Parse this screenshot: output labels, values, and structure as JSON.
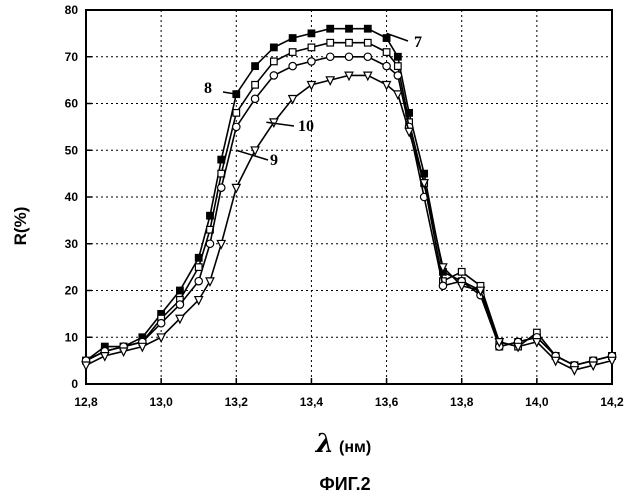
{
  "chart_data": {
    "type": "line",
    "ylabel": "R(%)",
    "xlabel_symbol": "λ",
    "xlabel_unit": "(нм)",
    "caption": "ФИГ.2",
    "xlim": [
      12.8,
      14.2
    ],
    "ylim": [
      0,
      80
    ],
    "x_ticks": [
      {
        "v": 12.8,
        "label": "12,8"
      },
      {
        "v": 13.0,
        "label": "13,0"
      },
      {
        "v": 13.2,
        "label": "13,2"
      },
      {
        "v": 13.4,
        "label": "13,4"
      },
      {
        "v": 13.6,
        "label": "13,6"
      },
      {
        "v": 13.8,
        "label": "13,8"
      },
      {
        "v": 14.0,
        "label": "14,0"
      },
      {
        "v": 14.2,
        "label": "14,2"
      }
    ],
    "y_ticks": [
      {
        "v": 0,
        "label": "0"
      },
      {
        "v": 10,
        "label": "10"
      },
      {
        "v": 20,
        "label": "20"
      },
      {
        "v": 30,
        "label": "30"
      },
      {
        "v": 40,
        "label": "40"
      },
      {
        "v": 50,
        "label": "50"
      },
      {
        "v": 60,
        "label": "60"
      },
      {
        "v": 70,
        "label": "70"
      },
      {
        "v": 80,
        "label": "80"
      }
    ],
    "grid": true,
    "series": [
      {
        "name": "7",
        "marker": "square-filled",
        "x": [
          12.8,
          12.85,
          12.9,
          12.95,
          13.0,
          13.05,
          13.1,
          13.13,
          13.16,
          13.2,
          13.25,
          13.3,
          13.35,
          13.4,
          13.45,
          13.5,
          13.55,
          13.6,
          13.63,
          13.66,
          13.7,
          13.75,
          13.8,
          13.85,
          13.9,
          13.95,
          14.0,
          14.05,
          14.1,
          14.15,
          14.2
        ],
        "y": [
          5,
          8,
          8,
          10,
          15,
          20,
          27,
          36,
          48,
          62,
          68,
          72,
          74,
          75,
          76,
          76,
          76,
          74,
          70,
          58,
          45,
          24,
          22,
          20,
          8,
          9,
          10,
          6,
          4,
          5,
          6
        ]
      },
      {
        "name": "8",
        "marker": "square-open",
        "x": [
          12.8,
          12.85,
          12.9,
          12.95,
          13.0,
          13.05,
          13.1,
          13.13,
          13.16,
          13.2,
          13.25,
          13.3,
          13.35,
          13.4,
          13.45,
          13.5,
          13.55,
          13.6,
          13.63,
          13.66,
          13.7,
          13.75,
          13.8,
          13.85,
          13.9,
          13.95,
          14.0,
          14.05,
          14.1,
          14.15,
          14.2
        ],
        "y": [
          5,
          7,
          8,
          9,
          14,
          18,
          25,
          33,
          45,
          58,
          64,
          69,
          71,
          72,
          73,
          73,
          73,
          71,
          68,
          56,
          43,
          22,
          24,
          21,
          9,
          8,
          11,
          6,
          4,
          5,
          6
        ]
      },
      {
        "name": "10",
        "marker": "circle-open",
        "x": [
          12.8,
          12.85,
          12.9,
          12.95,
          13.0,
          13.05,
          13.1,
          13.13,
          13.16,
          13.2,
          13.25,
          13.3,
          13.35,
          13.4,
          13.45,
          13.5,
          13.55,
          13.6,
          13.63,
          13.66,
          13.7,
          13.75,
          13.8,
          13.85,
          13.9,
          13.95,
          14.0,
          14.05,
          14.1,
          14.15,
          14.2
        ],
        "y": [
          5,
          7,
          8,
          9,
          13,
          17,
          22,
          30,
          42,
          55,
          61,
          66,
          68,
          69,
          70,
          70,
          70,
          68,
          66,
          55,
          40,
          21,
          22,
          19,
          8,
          9,
          10,
          6,
          4,
          5,
          6
        ]
      },
      {
        "name": "9",
        "marker": "triangle-down-open",
        "x": [
          12.8,
          12.85,
          12.9,
          12.95,
          13.0,
          13.05,
          13.1,
          13.13,
          13.16,
          13.2,
          13.25,
          13.3,
          13.35,
          13.4,
          13.45,
          13.5,
          13.55,
          13.6,
          13.63,
          13.66,
          13.7,
          13.75,
          13.8,
          13.85,
          13.9,
          13.95,
          14.0,
          14.05,
          14.1,
          14.15,
          14.2
        ],
        "y": [
          4,
          6,
          7,
          8,
          10,
          14,
          18,
          22,
          30,
          42,
          50,
          56,
          61,
          64,
          65,
          66,
          66,
          64,
          62,
          54,
          43,
          25,
          21,
          20,
          9,
          8,
          9,
          5,
          3,
          4,
          5
        ]
      }
    ]
  }
}
